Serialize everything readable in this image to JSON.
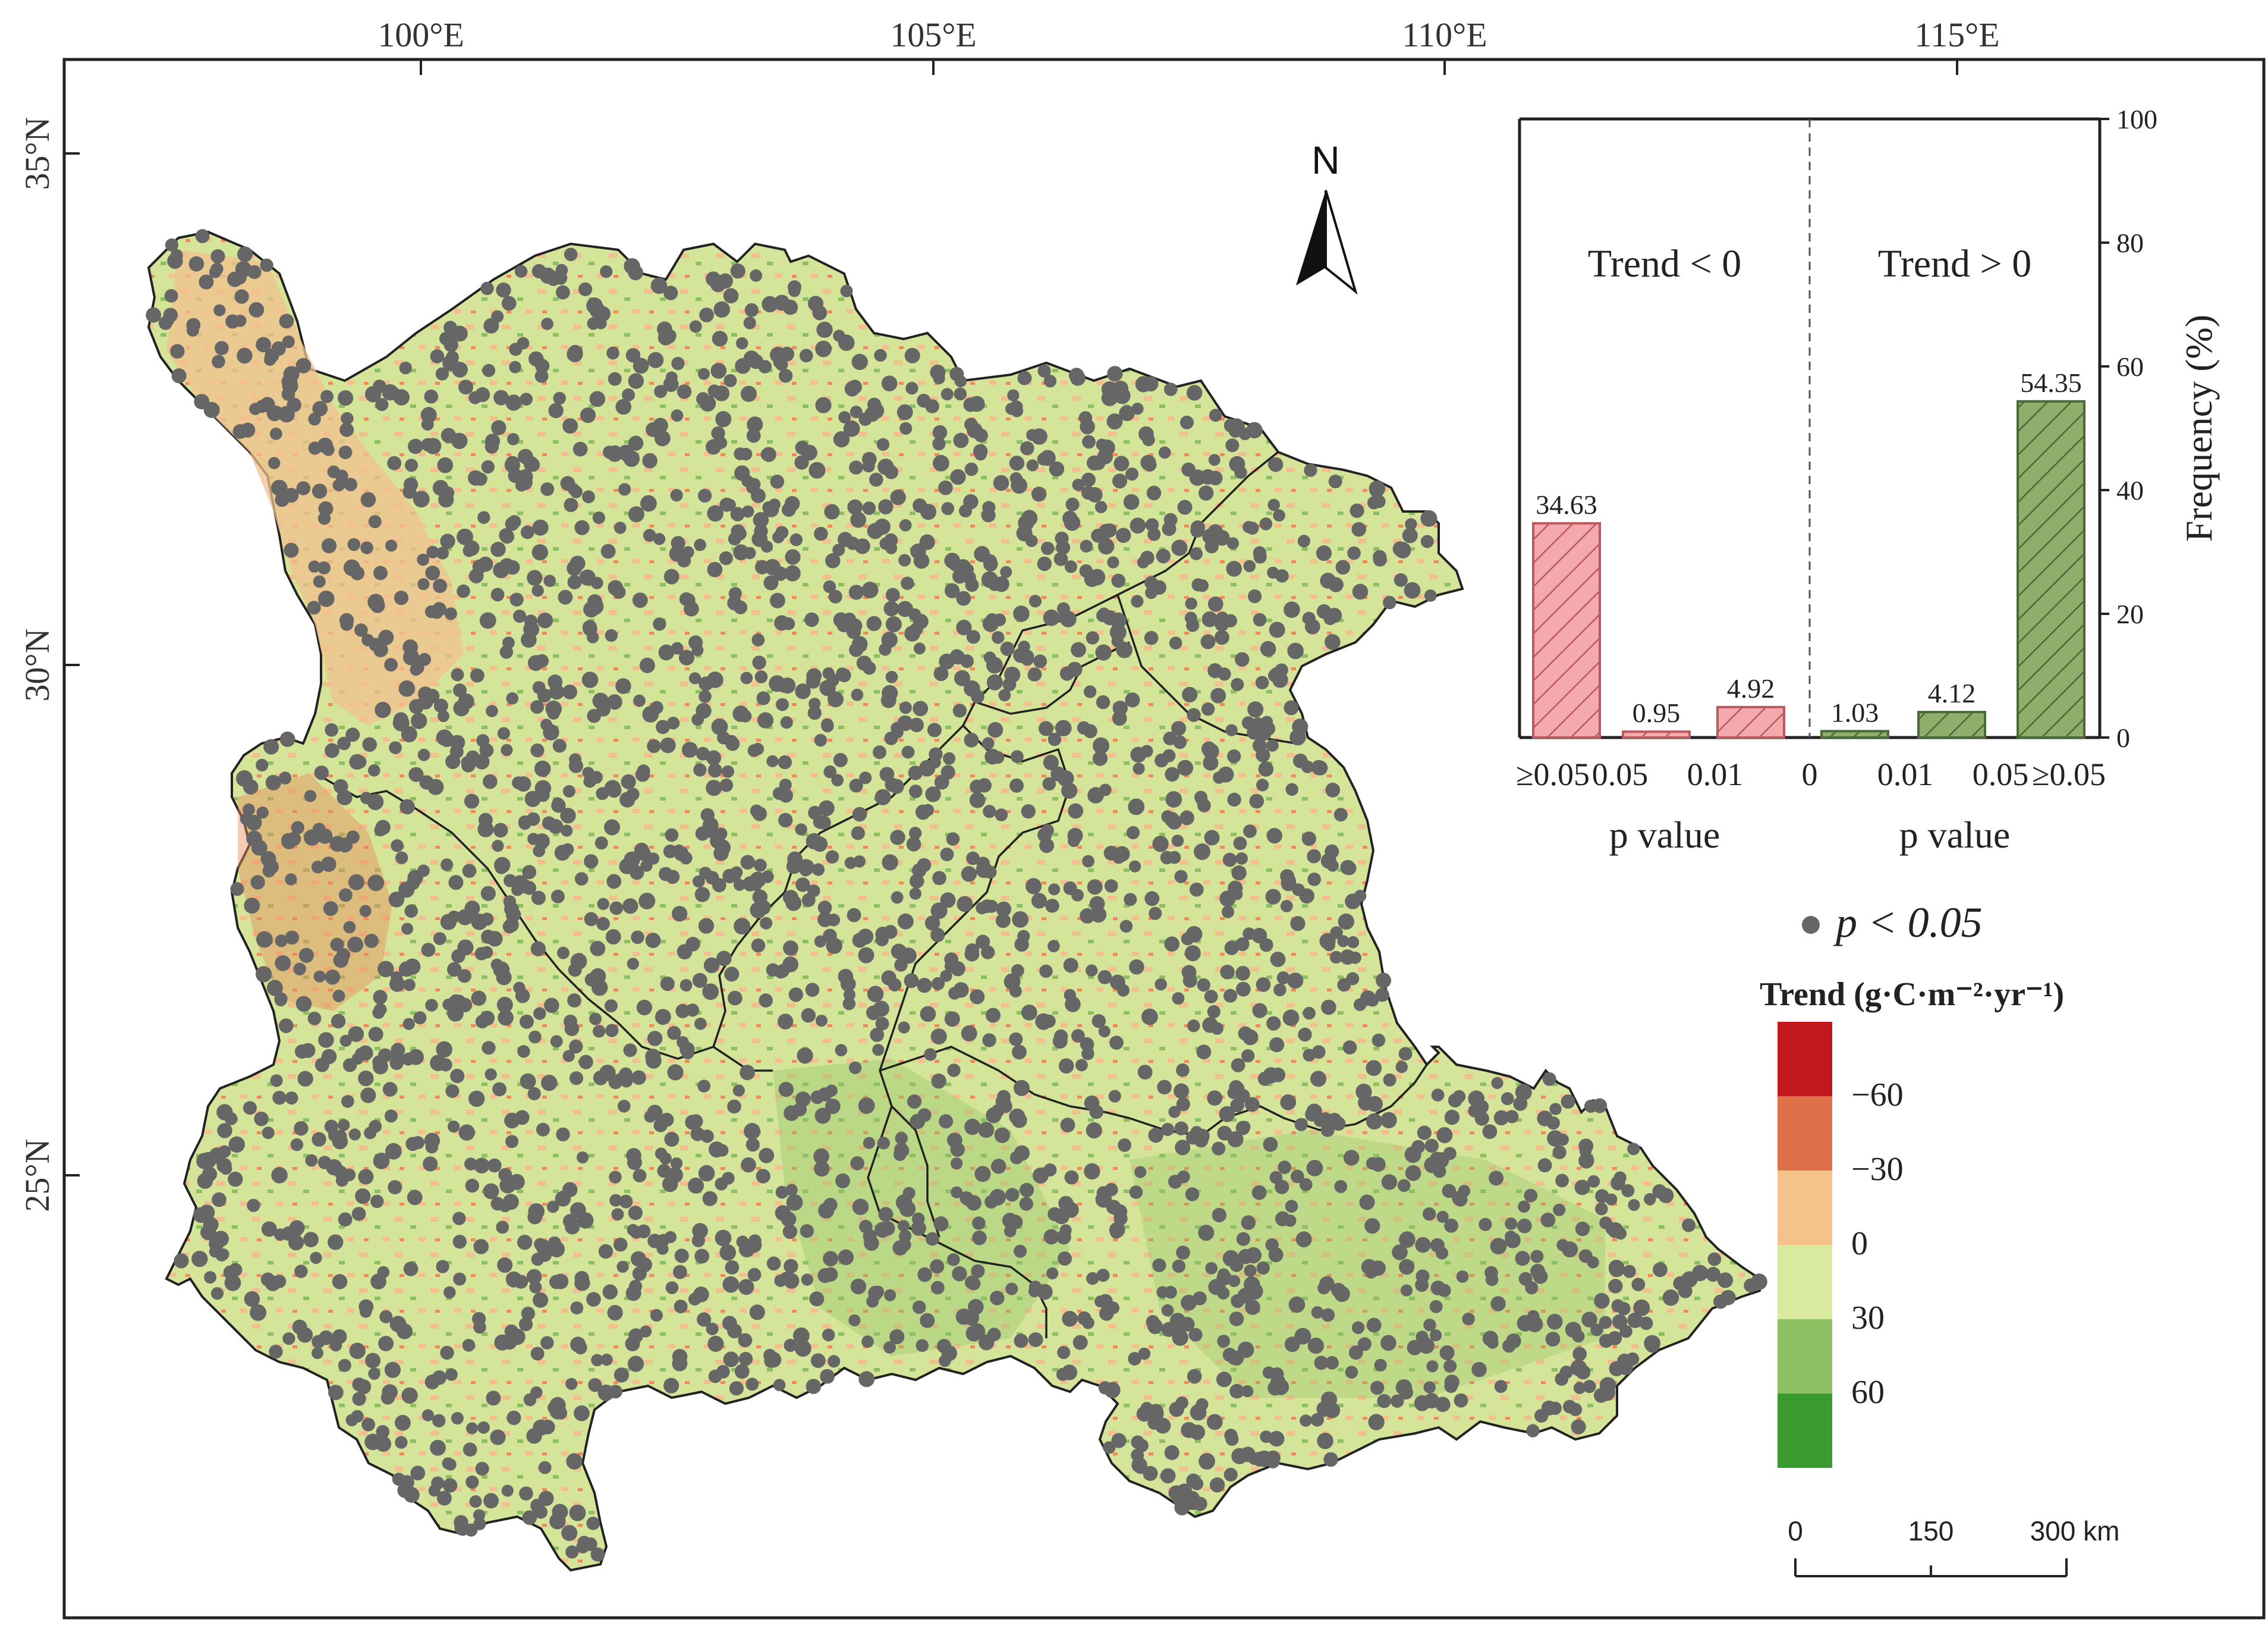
{
  "map": {
    "lon_ticks": [
      "100°E",
      "105°E",
      "110°E",
      "115°E"
    ],
    "lat_ticks": [
      "35°N",
      "30°N",
      "25°N"
    ],
    "north_label": "N"
  },
  "colors": {
    "map_base": "#d4e59a",
    "map_low": "#f2c08e",
    "map_mid": "#eaa06c",
    "dot": "#666666",
    "bar_negative": "#f4a9ad",
    "bar_negative_edge": "#b85a5e",
    "bar_positive": "#8fae6c",
    "bar_positive_edge": "#4a6a35"
  },
  "chart_data": {
    "type": "bar",
    "ylabel": "Frequency (%)",
    "ylim": [
      0,
      100
    ],
    "y_ticks": [
      "0",
      "20",
      "40",
      "60",
      "80",
      "100"
    ],
    "x_ticks": [
      "≥0.05",
      "0.05",
      "0.01",
      "0",
      "0.01",
      "0.05",
      "≥0.05"
    ],
    "xlabel_left": "p value",
    "xlabel_right": "p value",
    "label_negative": "Trend < 0",
    "label_positive": "Trend > 0",
    "series": [
      {
        "name": "Trend < 0",
        "values": [
          34.63,
          0.95,
          4.92
        ],
        "labels": [
          "34.63",
          "0.95",
          "4.92"
        ]
      },
      {
        "name": "Trend > 0",
        "values": [
          1.03,
          4.12,
          54.35
        ],
        "labels": [
          "1.03",
          "4.12",
          "54.35"
        ]
      }
    ]
  },
  "legend": {
    "dot_label": "p < 0.05",
    "title": "Trend (g·C·m⁻²·yr⁻¹)",
    "classes": [
      {
        "color": "#c0181c",
        "label": "−60"
      },
      {
        "color": "#e0704a",
        "label": "−30"
      },
      {
        "color": "#f5c28c",
        "label": "0"
      },
      {
        "color": "#d9eaa0",
        "label": "30"
      },
      {
        "color": "#8cc063",
        "label": "60"
      },
      {
        "color": "#3a9a30",
        "label": ""
      }
    ]
  },
  "scale_bar": {
    "labels": [
      "0",
      "150",
      "300 km"
    ]
  }
}
